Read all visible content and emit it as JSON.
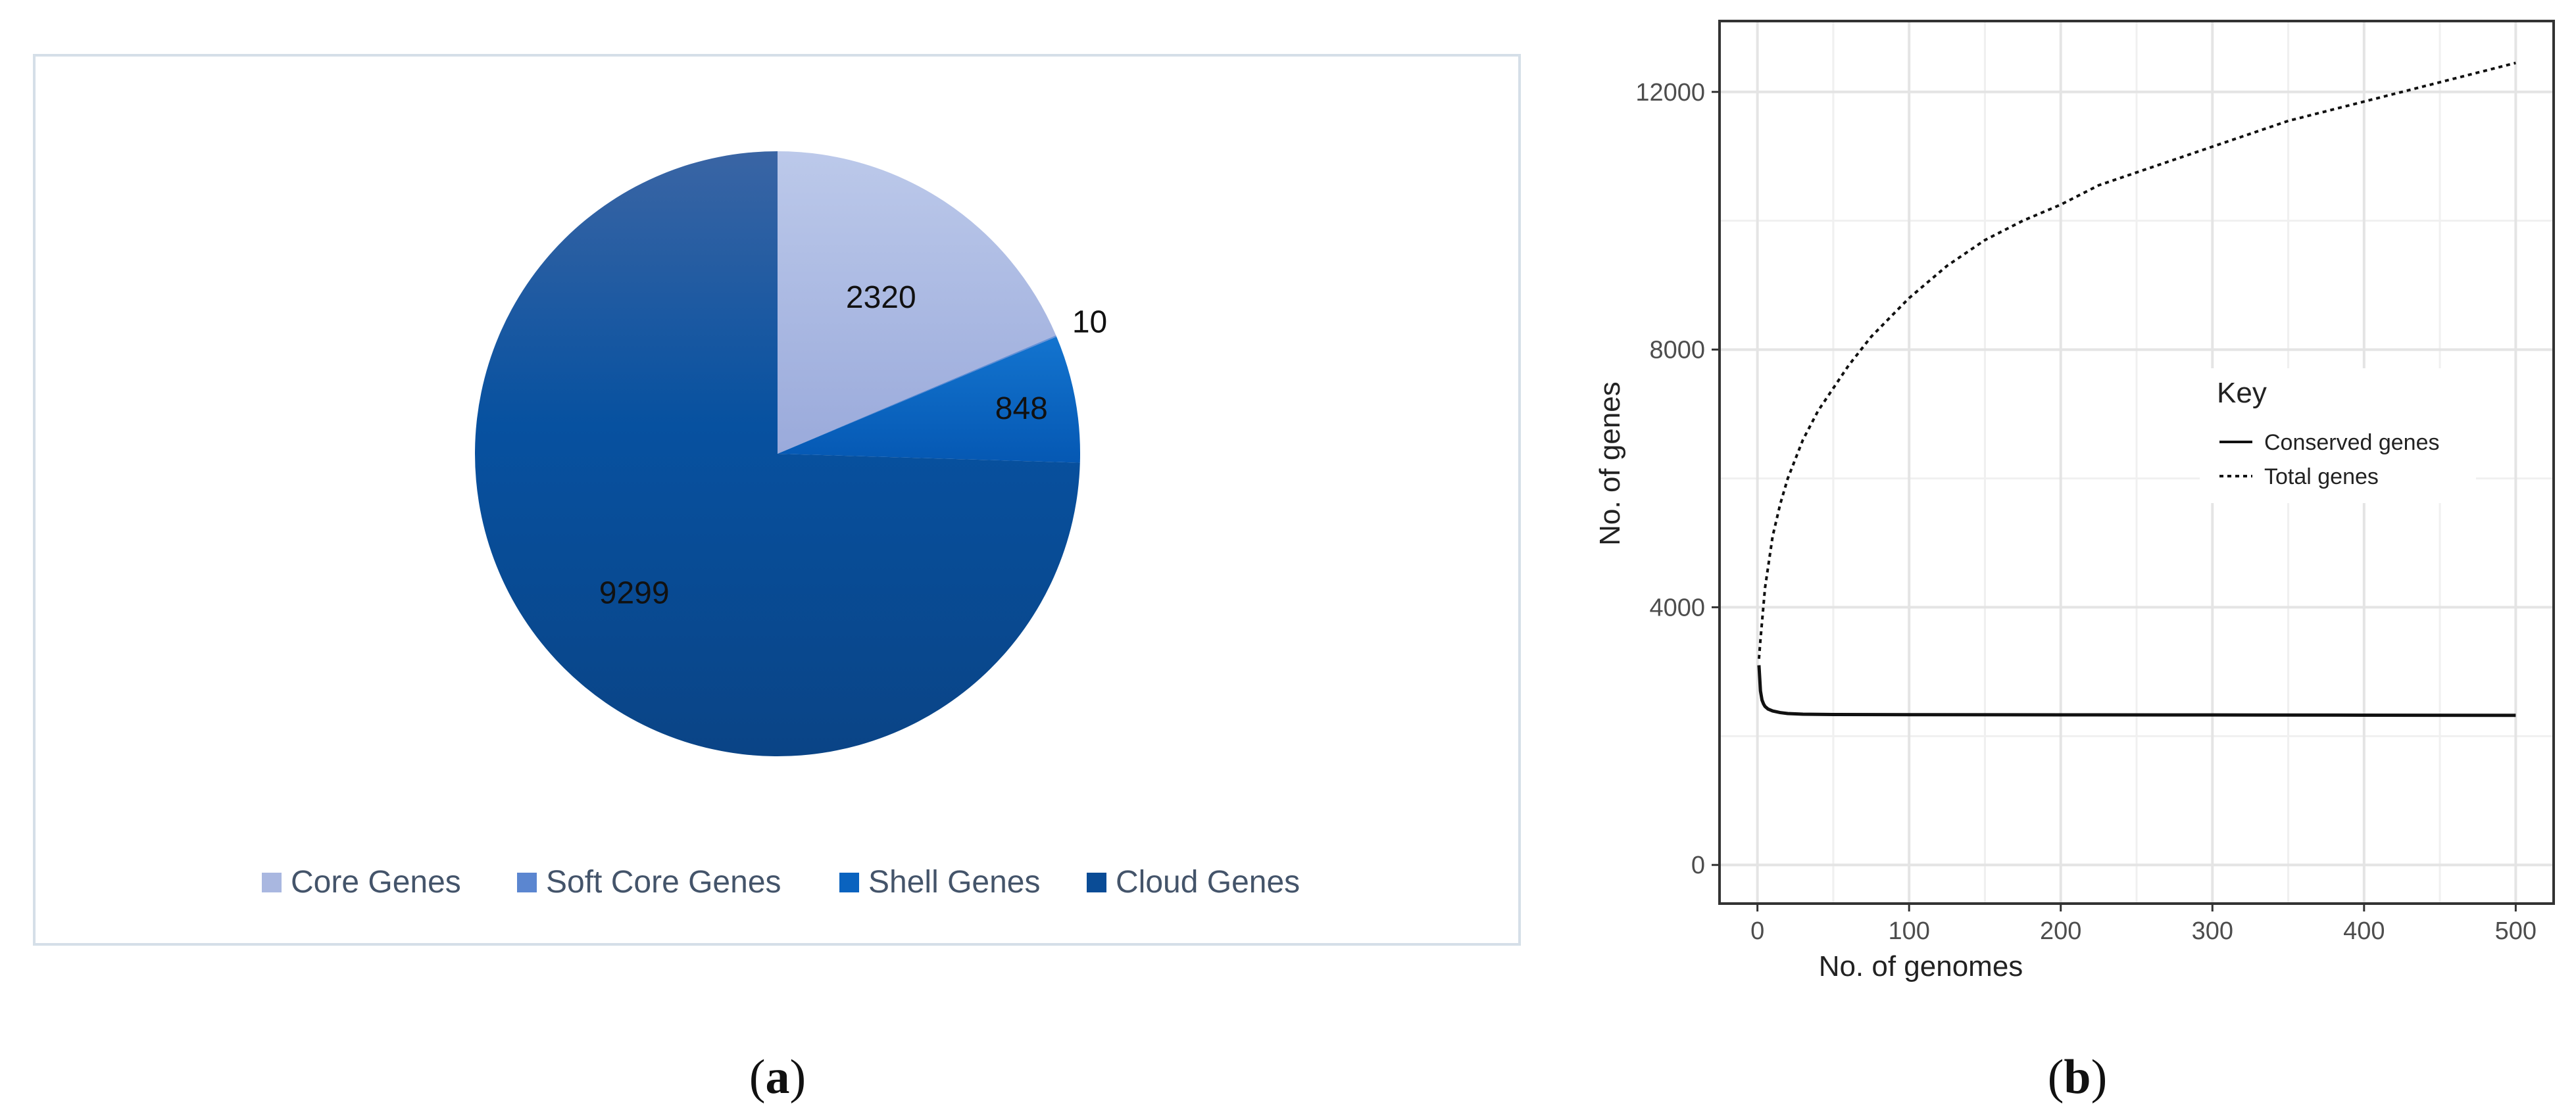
{
  "panels": [
    {
      "open": "(",
      "letter": "a",
      "close": ")"
    },
    {
      "open": "(",
      "letter": "b",
      "close": ")"
    }
  ],
  "chart_data": [
    {
      "type": "pie",
      "categories": [
        "Core Genes",
        "Soft Core Genes",
        "Shell Genes",
        "Cloud Genes"
      ],
      "values": [
        2320,
        10,
        848,
        9299
      ],
      "data_labels": [
        "2320",
        "10",
        "848",
        "9299"
      ],
      "colors": [
        "#a9b7e0",
        "#5b86d0",
        "#0a63bf",
        "#0a4c96"
      ],
      "legend": "bottom",
      "title": ""
    },
    {
      "type": "line",
      "xlabel": "No. of genomes",
      "ylabel": "No. of genes",
      "xlim": [
        -25,
        525
      ],
      "ylim": [
        -600,
        13100
      ],
      "xticks": [
        0,
        100,
        200,
        300,
        400,
        500
      ],
      "yticks": [
        0,
        4000,
        8000,
        12000
      ],
      "grid": true,
      "legend": {
        "title": "Key",
        "placement": "center-right"
      },
      "series": [
        {
          "name": "Conserved genes",
          "style": "solid",
          "x": [
            1,
            2,
            3,
            4,
            5,
            7,
            10,
            15,
            20,
            30,
            50,
            100,
            200,
            300,
            400,
            500
          ],
          "y": [
            3100,
            2700,
            2560,
            2500,
            2460,
            2420,
            2390,
            2365,
            2350,
            2340,
            2335,
            2332,
            2330,
            2328,
            2325,
            2322
          ]
        },
        {
          "name": "Total genes",
          "style": "dotted",
          "x": [
            1,
            2,
            5,
            10,
            15,
            20,
            30,
            40,
            50,
            60,
            75,
            100,
            125,
            150,
            175,
            200,
            225,
            250,
            275,
            300,
            325,
            350,
            375,
            400,
            425,
            450,
            475,
            500
          ],
          "y": [
            3200,
            3500,
            4300,
            5100,
            5600,
            6000,
            6600,
            7050,
            7400,
            7750,
            8200,
            8800,
            9300,
            9700,
            10000,
            10250,
            10550,
            10750,
            10950,
            11150,
            11350,
            11550,
            11700,
            11850,
            12000,
            12150,
            12300,
            12450
          ]
        }
      ]
    }
  ]
}
